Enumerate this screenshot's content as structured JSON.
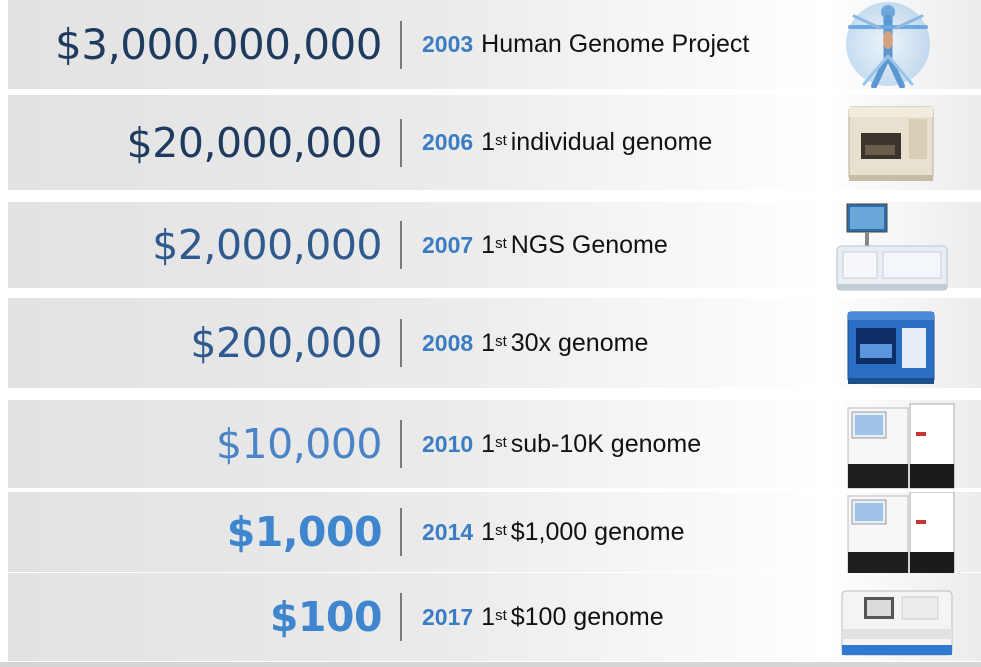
{
  "milestones": [
    {
      "price": "$3,000,000,000",
      "year": "2003",
      "ordinal": "",
      "suffix": "",
      "label": "Human Genome Project",
      "price_color": "#1f3a5f",
      "image": "vitruvian-man-icon"
    },
    {
      "price": "$20,000,000",
      "year": "2006",
      "ordinal": "1",
      "suffix": "st",
      "label": "individual genome",
      "price_color": "#1f3a5f",
      "image": "sequencer-machine-icon"
    },
    {
      "price": "$2,000,000",
      "year": "2007",
      "ordinal": "1",
      "suffix": "st",
      "label": "NGS Genome",
      "price_color": "#2e5a8f",
      "image": "ngs-sequencer-icon"
    },
    {
      "price": "$200,000",
      "year": "2008",
      "ordinal": "1",
      "suffix": "st",
      "label": "30x genome",
      "price_color": "#2e5a8f",
      "image": "blue-sequencer-icon"
    },
    {
      "price": "$10,000",
      "year": "2010",
      "ordinal": "1",
      "suffix": "st",
      "label": "sub-10K genome",
      "price_color": "#4a84c6",
      "image": "hiseq-sequencer-icon"
    },
    {
      "price": "$1,000",
      "year": "2014",
      "ordinal": "1",
      "suffix": "st",
      "label": "$1,000 genome",
      "price_color": "#3f86cf",
      "image": "hiseq-x-sequencer-icon"
    },
    {
      "price": "$100",
      "year": "2017",
      "ordinal": "1",
      "suffix": "st",
      "label": "$100 genome",
      "price_color": "#3f86cf",
      "image": "novaseq-sequencer-icon"
    }
  ]
}
